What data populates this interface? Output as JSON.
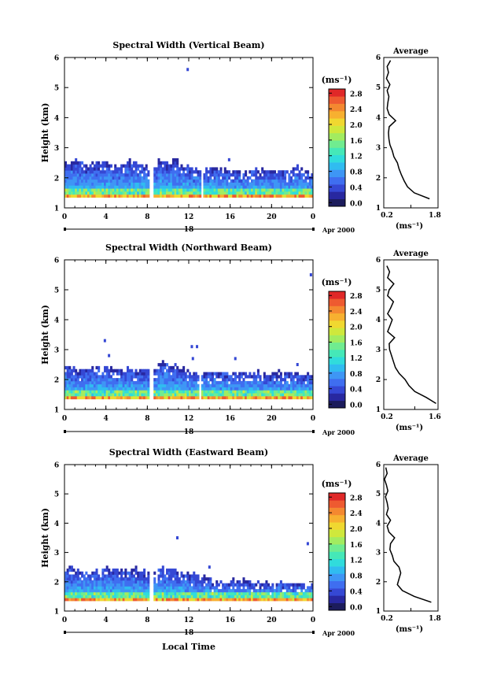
{
  "figure": {
    "date_label": "Apr 2000",
    "day_label": "18",
    "xlabel_bottom": "Local Time"
  },
  "colorbar": {
    "unit_label": "(ms⁻¹)",
    "colors": [
      "#1c1c5c",
      "#2828a0",
      "#3548d4",
      "#3f6ef0",
      "#3e96f5",
      "#30bcf0",
      "#30dcdc",
      "#45e8b8",
      "#70ec90",
      "#a2ec60",
      "#cfe83c",
      "#f0d830",
      "#f7b030",
      "#f48830",
      "#ee5a30",
      "#e02828"
    ]
  },
  "chart_data": [
    {
      "type": "heatmap",
      "title": "Spectral Width (Vertical Beam)",
      "xlabel": "",
      "ylabel": "Height (km)",
      "xlim": [
        0,
        24
      ],
      "ylim": [
        1,
        6
      ],
      "xticks": [
        "0",
        "4",
        "8",
        "12",
        "16",
        "20",
        "0"
      ],
      "yticks": [
        "1",
        "2",
        "3",
        "4",
        "5",
        "6"
      ],
      "colorbar_ticks": [
        "0.0",
        "0.4",
        "0.8",
        "1.2",
        "1.6",
        "2.0",
        "2.4",
        "2.8"
      ],
      "colorbar_range": [
        0,
        3.0
      ],
      "data_gaps_hours": [
        [
          8.2,
          8.6
        ],
        [
          13.2,
          13.4
        ]
      ],
      "echo_top_km": [
        2.5,
        2.5,
        2.4,
        2.45,
        2.5,
        2.4,
        2.5,
        2.4,
        2.3,
        2.55,
        2.6,
        2.4,
        2.3,
        2.2,
        2.3,
        2.25,
        2.2,
        2.2,
        2.2,
        2.25,
        2.2,
        2.2,
        2.3,
        2.2
      ],
      "isolated_points": [
        {
          "hour": 11.9,
          "km": 5.6
        },
        {
          "hour": 15.9,
          "km": 2.6
        }
      ],
      "profile": {
        "title": "Average",
        "xlabel": "(ms⁻¹)",
        "xlim": [
          0.2,
          1.8
        ],
        "xticks": [
          "0.2",
          "1.8"
        ],
        "heights_km": [
          1.3,
          1.5,
          1.7,
          1.9,
          2.1,
          2.3,
          2.5,
          2.7,
          2.9,
          3.1,
          3.3,
          3.5,
          3.7,
          3.9,
          4.1,
          4.3,
          4.5,
          4.7,
          4.9,
          5.1,
          5.3,
          5.5,
          5.7,
          5.9
        ],
        "values": [
          1.55,
          1.1,
          0.9,
          0.8,
          0.72,
          0.65,
          0.6,
          0.5,
          0.45,
          0.38,
          0.35,
          0.34,
          0.36,
          0.55,
          0.36,
          0.3,
          0.32,
          0.35,
          0.3,
          0.38,
          0.28,
          0.34,
          0.3,
          0.4
        ]
      }
    },
    {
      "type": "heatmap",
      "title": "Spectral Width (Northward Beam)",
      "xlabel": "",
      "ylabel": "Height (km)",
      "xlim": [
        0,
        24
      ],
      "ylim": [
        1,
        6
      ],
      "xticks": [
        "0",
        "4",
        "8",
        "12",
        "16",
        "20",
        "0"
      ],
      "yticks": [
        "1",
        "2",
        "3",
        "4",
        "5",
        "6"
      ],
      "colorbar_ticks": [
        "0.0",
        "0.4",
        "0.8",
        "1.2",
        "1.6",
        "2.0",
        "2.4",
        "2.8"
      ],
      "colorbar_range": [
        0,
        3.0
      ],
      "data_gaps_hours": [
        [
          8.2,
          8.6
        ],
        [
          13.0,
          13.2
        ]
      ],
      "echo_top_km": [
        2.4,
        2.3,
        2.3,
        2.4,
        2.35,
        2.3,
        2.35,
        2.3,
        2.3,
        2.5,
        2.4,
        2.3,
        2.2,
        2.2,
        2.2,
        2.2,
        2.15,
        2.2,
        2.2,
        2.15,
        2.2,
        2.2,
        2.2,
        2.15
      ],
      "isolated_points": [
        {
          "hour": 3.9,
          "km": 3.3
        },
        {
          "hour": 4.3,
          "km": 2.8
        },
        {
          "hour": 12.3,
          "km": 3.1
        },
        {
          "hour": 12.8,
          "km": 3.1
        },
        {
          "hour": 12.4,
          "km": 2.7
        },
        {
          "hour": 16.5,
          "km": 2.7
        },
        {
          "hour": 22.5,
          "km": 2.5
        },
        {
          "hour": 23.8,
          "km": 5.5
        }
      ],
      "profile": {
        "title": "Average",
        "xlabel": "(ms⁻¹)",
        "xlim": [
          0.2,
          1.6
        ],
        "xticks": [
          "0.2",
          "1.6"
        ],
        "heights_km": [
          1.2,
          1.4,
          1.6,
          1.8,
          2.0,
          2.2,
          2.4,
          2.6,
          2.8,
          3.0,
          3.2,
          3.4,
          3.6,
          3.8,
          4.0,
          4.2,
          4.4,
          4.6,
          4.8,
          5.0,
          5.2,
          5.4,
          5.6,
          5.8
        ],
        "values": [
          1.55,
          1.3,
          1.0,
          0.85,
          0.75,
          0.6,
          0.5,
          0.45,
          0.4,
          0.35,
          0.34,
          0.48,
          0.3,
          0.36,
          0.42,
          0.3,
          0.38,
          0.45,
          0.3,
          0.34,
          0.46,
          0.3,
          0.35,
          0.28
        ]
      }
    },
    {
      "type": "heatmap",
      "title": "Spectral Width (Eastward Beam)",
      "xlabel": "Local Time",
      "ylabel": "Height (km)",
      "xlim": [
        0,
        24
      ],
      "ylim": [
        1,
        6
      ],
      "xticks": [
        "0",
        "4",
        "8",
        "12",
        "16",
        "20",
        "0"
      ],
      "yticks": [
        "1",
        "2",
        "3",
        "4",
        "5",
        "6"
      ],
      "colorbar_ticks": [
        "0.0",
        "0.4",
        "0.8",
        "1.2",
        "1.6",
        "2.0",
        "2.4",
        "2.8"
      ],
      "colorbar_range": [
        0,
        3.0
      ],
      "data_gaps_hours": [
        [
          8.2,
          8.6
        ]
      ],
      "echo_top_km": [
        2.4,
        2.4,
        2.35,
        2.4,
        2.4,
        2.35,
        2.4,
        2.35,
        2.3,
        2.4,
        2.35,
        2.3,
        2.2,
        2.1,
        2.0,
        2.0,
        2.0,
        2.0,
        1.9,
        1.9,
        1.9,
        1.9,
        1.9,
        1.9
      ],
      "isolated_points": [
        {
          "hour": 10.9,
          "km": 3.5
        },
        {
          "hour": 14.0,
          "km": 2.5
        },
        {
          "hour": 23.5,
          "km": 3.3
        }
      ],
      "profile": {
        "title": "Average",
        "xlabel": "(ms⁻¹)",
        "xlim": [
          0.2,
          1.8
        ],
        "xticks": [
          "0.2",
          "1.8"
        ],
        "heights_km": [
          1.3,
          1.5,
          1.7,
          1.9,
          2.1,
          2.3,
          2.5,
          2.7,
          2.9,
          3.1,
          3.3,
          3.5,
          3.7,
          3.9,
          4.1,
          4.3,
          4.5,
          4.7,
          4.9,
          5.1,
          5.3,
          5.5,
          5.7,
          5.9
        ],
        "values": [
          1.6,
          1.1,
          0.75,
          0.6,
          0.65,
          0.7,
          0.65,
          0.5,
          0.45,
          0.38,
          0.4,
          0.52,
          0.35,
          0.3,
          0.4,
          0.28,
          0.33,
          0.3,
          0.25,
          0.32,
          0.28,
          0.22,
          0.3,
          0.26
        ]
      }
    }
  ]
}
